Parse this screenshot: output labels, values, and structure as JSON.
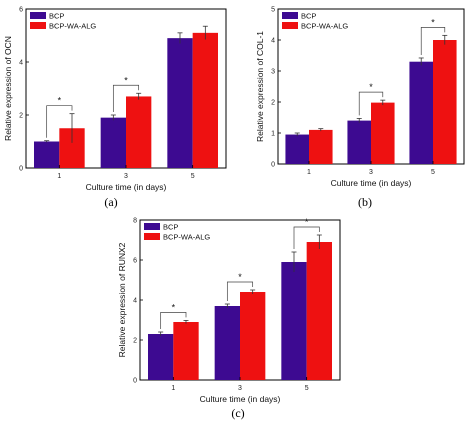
{
  "chart_data": [
    {
      "type": "bar",
      "panel_label": "(a)",
      "categories": [
        "1",
        "3",
        "5"
      ],
      "series": [
        {
          "name": "BCP",
          "values": [
            1.0,
            1.9,
            4.9
          ],
          "errors": [
            0.03,
            0.1,
            0.2
          ],
          "color": "#3d0a91"
        },
        {
          "name": "BCP-WA-ALG",
          "values": [
            1.5,
            2.7,
            5.1
          ],
          "errors": [
            0.55,
            0.12,
            0.25
          ],
          "color": "#ee1111"
        }
      ],
      "significance": [
        "*",
        "*",
        ""
      ],
      "xlabel": "Culture time (in days)",
      "ylabel": "Relative expression of OCN",
      "ylim": [
        0,
        6
      ],
      "yticks": [
        "0",
        "2",
        "4",
        "6"
      ],
      "legend_position": "top-left"
    },
    {
      "type": "bar",
      "panel_label": "(b)",
      "categories": [
        "1",
        "3",
        "5"
      ],
      "series": [
        {
          "name": "BCP",
          "values": [
            0.95,
            1.4,
            3.3
          ],
          "errors": [
            0.05,
            0.07,
            0.12
          ],
          "color": "#3d0a91"
        },
        {
          "name": "BCP-WA-ALG",
          "values": [
            1.1,
            1.98,
            4.0
          ],
          "errors": [
            0.04,
            0.08,
            0.15
          ],
          "color": "#ee1111"
        }
      ],
      "significance": [
        "",
        "*",
        "*"
      ],
      "xlabel": "Culture time (in days)",
      "ylabel": "Relative expression of COL-1",
      "ylim": [
        0,
        5
      ],
      "yticks": [
        "0",
        "1",
        "2",
        "3",
        "4",
        "5"
      ],
      "legend_position": "top-left"
    },
    {
      "type": "bar",
      "panel_label": "(c)",
      "categories": [
        "1",
        "3",
        "5"
      ],
      "series": [
        {
          "name": "BCP",
          "values": [
            2.3,
            3.7,
            5.9
          ],
          "errors": [
            0.1,
            0.1,
            0.5
          ],
          "color": "#3d0a91"
        },
        {
          "name": "BCP-WA-ALG",
          "values": [
            2.9,
            4.4,
            6.9
          ],
          "errors": [
            0.08,
            0.1,
            0.35
          ],
          "color": "#ee1111"
        }
      ],
      "significance": [
        "*",
        "*",
        "*"
      ],
      "xlabel": "Culture time (in days)",
      "ylabel": "Relative expression of RUNX2",
      "ylim": [
        0,
        8
      ],
      "yticks": [
        "0",
        "2",
        "4",
        "6",
        "8"
      ],
      "legend_position": "top-left"
    }
  ]
}
